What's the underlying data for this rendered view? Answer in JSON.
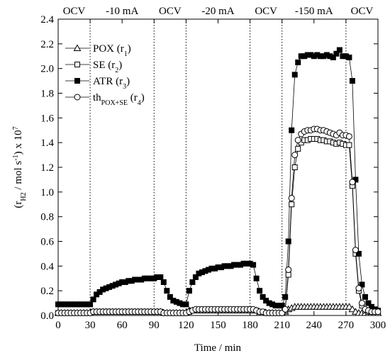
{
  "chart_data": {
    "type": "line",
    "xlabel": "Time / min",
    "ylabel": [
      {
        "text": "(r"
      },
      {
        "text": "H2",
        "shift": "sub"
      },
      {
        "text": " / mol s"
      },
      {
        "text": "-1",
        "shift": "super"
      },
      {
        "text": ") x 10"
      },
      {
        "text": "7",
        "shift": "super"
      }
    ],
    "xlim": [
      0,
      300
    ],
    "xticks": [
      0,
      30,
      60,
      90,
      120,
      150,
      180,
      210,
      240,
      270,
      300
    ],
    "ylim": [
      0,
      2.4
    ],
    "yticks": [
      {
        "value": 0,
        "label": "0.0"
      },
      0.2,
      0.4,
      0.6,
      0.8,
      {
        "value": 1,
        "label": "1.0"
      },
      1.2,
      1.4,
      1.6,
      1.8,
      {
        "value": 2,
        "label": "2.0"
      },
      2.2,
      2.4
    ],
    "phases": [
      {
        "label": "OCV",
        "start": 0,
        "end": 30
      },
      {
        "label": "-10 mA",
        "start": 30,
        "end": 90
      },
      {
        "label": "OCV",
        "start": 90,
        "end": 120
      },
      {
        "label": "-20 mA",
        "start": 120,
        "end": 180
      },
      {
        "label": "OCV",
        "start": 180,
        "end": 210
      },
      {
        "label": "-150 mA",
        "start": 210,
        "end": 270
      },
      {
        "label": "OCV",
        "start": 270,
        "end": 300
      }
    ],
    "x": [
      0,
      3,
      6,
      9,
      12,
      15,
      18,
      21,
      24,
      27,
      30,
      33,
      36,
      39,
      42,
      45,
      48,
      51,
      54,
      57,
      60,
      63,
      66,
      69,
      72,
      75,
      78,
      81,
      84,
      87,
      90,
      93,
      96,
      99,
      102,
      105,
      108,
      111,
      114,
      117,
      120,
      123,
      126,
      129,
      132,
      135,
      138,
      141,
      144,
      147,
      150,
      153,
      156,
      159,
      162,
      165,
      168,
      171,
      174,
      177,
      180,
      183,
      186,
      189,
      192,
      195,
      198,
      201,
      204,
      207,
      210,
      213,
      216,
      219,
      222,
      225,
      228,
      231,
      234,
      237,
      240,
      243,
      246,
      249,
      252,
      255,
      258,
      261,
      264,
      267,
      270,
      273,
      276,
      279,
      282,
      285,
      288,
      291,
      294,
      297,
      300
    ],
    "series": [
      {
        "name": [
          {
            "text": "POX (r"
          },
          {
            "text": "1",
            "shift": "sub"
          },
          {
            "text": ")"
          }
        ],
        "color": "#000000",
        "marker": "triangle",
        "filled": false,
        "values": [
          0.02,
          0.02,
          0.02,
          0.02,
          0.02,
          0.02,
          0.02,
          0.02,
          0.02,
          0.02,
          0.02,
          0.03,
          0.03,
          0.03,
          0.03,
          0.03,
          0.03,
          0.03,
          0.03,
          0.03,
          0.03,
          0.03,
          0.03,
          0.03,
          0.03,
          0.03,
          0.03,
          0.03,
          0.03,
          0.03,
          0.03,
          0.03,
          0.03,
          0.02,
          0.02,
          0.02,
          0.02,
          0.02,
          0.02,
          0.02,
          0.02,
          0.04,
          0.04,
          0.04,
          0.04,
          0.04,
          0.04,
          0.04,
          0.04,
          0.04,
          0.04,
          0.04,
          0.04,
          0.04,
          0.04,
          0.04,
          0.04,
          0.04,
          0.04,
          0.04,
          0.04,
          0.04,
          0.04,
          0.02,
          0.02,
          0.02,
          0.02,
          0.02,
          0.02,
          0.02,
          0.02,
          0.03,
          0.05,
          0.06,
          0.07,
          0.07,
          0.07,
          0.07,
          0.07,
          0.07,
          0.07,
          0.07,
          0.07,
          0.07,
          0.07,
          0.07,
          0.07,
          0.07,
          0.07,
          0.07,
          0.07,
          0.07,
          0.05,
          0.03,
          0.02,
          0.02,
          0.02,
          0.02,
          0.02,
          0.02,
          0.02
        ]
      },
      {
        "name": [
          {
            "text": "SE (r"
          },
          {
            "text": "2",
            "shift": "sub"
          },
          {
            "text": ")"
          }
        ],
        "color": "#000000",
        "marker": "square",
        "filled": false,
        "values": [
          0.02,
          0.02,
          0.02,
          0.02,
          0.02,
          0.02,
          0.02,
          0.02,
          0.02,
          0.02,
          0.02,
          0.03,
          0.03,
          0.03,
          0.03,
          0.03,
          0.03,
          0.03,
          0.03,
          0.03,
          0.03,
          0.03,
          0.03,
          0.03,
          0.03,
          0.03,
          0.03,
          0.03,
          0.03,
          0.03,
          0.03,
          0.03,
          0.03,
          0.02,
          0.02,
          0.02,
          0.02,
          0.02,
          0.02,
          0.02,
          0.02,
          0.03,
          0.04,
          0.04,
          0.04,
          0.04,
          0.04,
          0.04,
          0.04,
          0.04,
          0.04,
          0.04,
          0.04,
          0.04,
          0.04,
          0.04,
          0.04,
          0.04,
          0.04,
          0.04,
          0.04,
          0.04,
          0.04,
          0.03,
          0.03,
          0.02,
          0.02,
          0.02,
          0.02,
          0.02,
          0.02,
          0.04,
          0.33,
          0.9,
          1.2,
          1.35,
          1.4,
          1.42,
          1.42,
          1.43,
          1.43,
          1.43,
          1.42,
          1.42,
          1.41,
          1.41,
          1.4,
          1.39,
          1.4,
          1.39,
          1.38,
          1.38,
          1.05,
          0.5,
          0.2,
          0.08,
          0.04,
          0.03,
          0.03,
          0.02,
          0.02
        ]
      },
      {
        "name": [
          {
            "text": "ATR (r"
          },
          {
            "text": "3",
            "shift": "sub"
          },
          {
            "text": ")"
          }
        ],
        "color": "#000000",
        "marker": "square",
        "filled": true,
        "values": [
          0.09,
          0.09,
          0.09,
          0.09,
          0.09,
          0.09,
          0.09,
          0.09,
          0.09,
          0.09,
          0.09,
          0.13,
          0.17,
          0.19,
          0.21,
          0.22,
          0.23,
          0.24,
          0.25,
          0.26,
          0.27,
          0.27,
          0.28,
          0.28,
          0.29,
          0.29,
          0.29,
          0.3,
          0.3,
          0.3,
          0.3,
          0.31,
          0.31,
          0.27,
          0.2,
          0.15,
          0.12,
          0.11,
          0.1,
          0.09,
          0.09,
          0.2,
          0.27,
          0.31,
          0.34,
          0.35,
          0.36,
          0.37,
          0.38,
          0.38,
          0.39,
          0.39,
          0.4,
          0.4,
          0.4,
          0.41,
          0.41,
          0.41,
          0.42,
          0.42,
          0.42,
          0.41,
          0.3,
          0.2,
          0.15,
          0.12,
          0.1,
          0.09,
          0.08,
          0.08,
          0.08,
          0.15,
          0.6,
          1.5,
          1.95,
          2.05,
          2.1,
          2.1,
          2.11,
          2.11,
          2.1,
          2.11,
          2.1,
          2.1,
          2.11,
          2.1,
          2.09,
          2.12,
          2.15,
          2.1,
          2.1,
          2.09,
          1.9,
          1.1,
          0.5,
          0.25,
          0.15,
          0.1,
          0.07,
          0.05,
          0.04
        ]
      },
      {
        "name": [
          {
            "text": "th"
          },
          {
            "text": "POX+SE",
            "shift": "sub"
          },
          {
            "text": " (r"
          },
          {
            "text": "4",
            "shift": "sub"
          },
          {
            "text": ")"
          }
        ],
        "color": "#000000",
        "marker": "circle",
        "filled": false,
        "values": [
          0.02,
          0.02,
          0.02,
          0.02,
          0.02,
          0.02,
          0.02,
          0.02,
          0.02,
          0.02,
          0.02,
          0.03,
          0.03,
          0.03,
          0.03,
          0.03,
          0.03,
          0.03,
          0.03,
          0.03,
          0.03,
          0.03,
          0.03,
          0.03,
          0.03,
          0.03,
          0.03,
          0.03,
          0.03,
          0.03,
          0.03,
          0.03,
          0.03,
          0.02,
          0.02,
          0.02,
          0.02,
          0.02,
          0.02,
          0.02,
          0.02,
          0.03,
          0.04,
          0.05,
          0.05,
          0.05,
          0.05,
          0.05,
          0.05,
          0.05,
          0.05,
          0.05,
          0.05,
          0.05,
          0.05,
          0.05,
          0.05,
          0.05,
          0.05,
          0.05,
          0.05,
          0.05,
          0.04,
          0.03,
          0.03,
          0.02,
          0.02,
          0.02,
          0.02,
          0.02,
          0.02,
          0.05,
          0.37,
          0.95,
          1.3,
          1.42,
          1.47,
          1.49,
          1.5,
          1.5,
          1.51,
          1.51,
          1.5,
          1.5,
          1.49,
          1.48,
          1.47,
          1.46,
          1.48,
          1.46,
          1.46,
          1.45,
          1.08,
          0.53,
          0.22,
          0.1,
          0.05,
          0.04,
          0.03,
          0.03,
          0.03
        ]
      }
    ]
  }
}
